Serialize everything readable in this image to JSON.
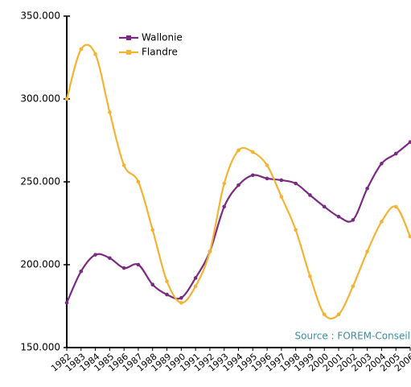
{
  "chart_data": {
    "type": "line",
    "x": [
      "1982",
      "1983",
      "1984",
      "1985",
      "1986",
      "1987",
      "1988",
      "1989",
      "1990",
      "1991",
      "1992",
      "1993",
      "1994",
      "1995",
      "1996",
      "1997",
      "1998",
      "1999",
      "2000",
      "2001",
      "2002",
      "2003",
      "2004",
      "2005",
      "2006"
    ],
    "series": [
      {
        "name": "Wallonie",
        "color": "#7b2a82",
        "values": [
          177000,
          196000,
          206000,
          204000,
          198000,
          200000,
          188000,
          182000,
          180000,
          192000,
          208000,
          235000,
          248000,
          254000,
          252000,
          251000,
          249000,
          242000,
          235000,
          229000,
          227000,
          246000,
          261000,
          267000,
          274000
        ]
      },
      {
        "name": "Flandre",
        "color": "#f5b335",
        "values": [
          300000,
          330000,
          327000,
          292000,
          260000,
          250000,
          221000,
          190000,
          177000,
          187000,
          208000,
          249000,
          269000,
          268000,
          260000,
          241000,
          221000,
          193000,
          170000,
          170000,
          187000,
          208000,
          226000,
          235000,
          217000
        ]
      }
    ],
    "ylim": [
      150000,
      350000
    ],
    "yticks": [
      {
        "value": 150000,
        "label": "150.000"
      },
      {
        "value": 200000,
        "label": "200.000"
      },
      {
        "value": 250000,
        "label": "250.000"
      },
      {
        "value": 300000,
        "label": "300.000"
      },
      {
        "value": 350000,
        "label": "350.000"
      }
    ],
    "annotation": "Source : FOREM-Conseil",
    "legend": "top-left"
  }
}
